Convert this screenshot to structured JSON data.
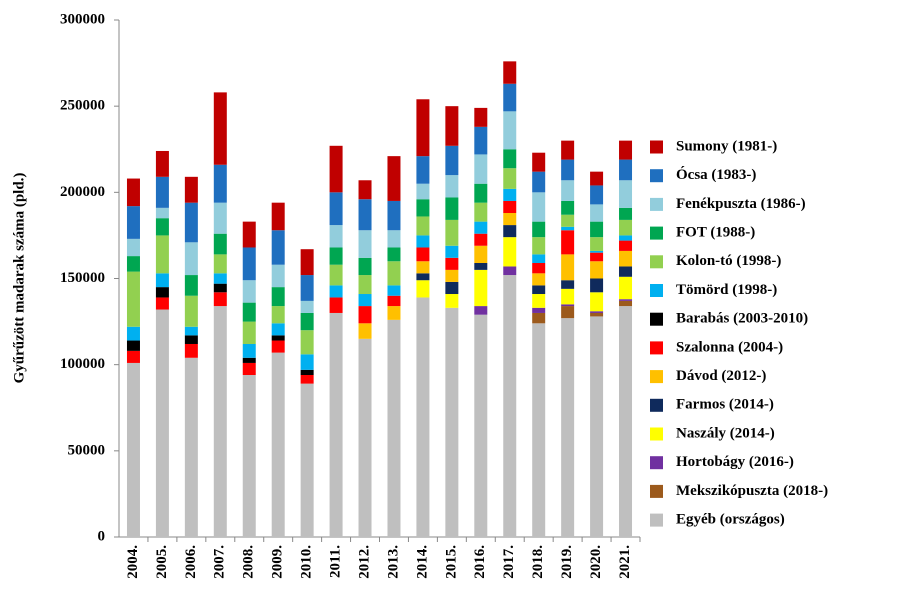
{
  "chart_data": {
    "type": "stacked_bar",
    "y_label": "Gyűrűzött madarak száma (pld.)",
    "categories": [
      "2004.",
      "2005.",
      "2006.",
      "2007.",
      "2008.",
      "2009.",
      "2010.",
      "2011.",
      "2012.",
      "2013.",
      "2014.",
      "2015.",
      "2016.",
      "2017.",
      "2018.",
      "2019.",
      "2020.",
      "2021."
    ],
    "ylim": [
      0,
      300000
    ],
    "yticks": [
      0,
      50000,
      100000,
      150000,
      200000,
      250000,
      300000
    ],
    "grid": false,
    "legend": "right",
    "series": [
      {
        "name": "Egyéb (országos)",
        "color": "#bfbfbf",
        "values": [
          101000,
          132000,
          104000,
          134000,
          94000,
          107000,
          89000,
          130000,
          115000,
          126000,
          139000,
          133000,
          129000,
          152000,
          124000,
          127000,
          128000,
          134000
        ]
      },
      {
        "name": "Mekszikópuszta (2018-)",
        "color": "#9c5a1c",
        "values": [
          null,
          null,
          null,
          null,
          null,
          null,
          null,
          null,
          null,
          null,
          null,
          null,
          null,
          null,
          6000,
          7000,
          2000,
          3000
        ]
      },
      {
        "name": "Hortobágy (2016-)",
        "color": "#7030a0",
        "values": [
          null,
          null,
          null,
          null,
          null,
          null,
          null,
          null,
          null,
          null,
          null,
          null,
          5000,
          5000,
          3000,
          1000,
          1000,
          1000
        ]
      },
      {
        "name": "Naszály (2014-)",
        "color": "#ffff00",
        "values": [
          null,
          null,
          null,
          null,
          null,
          null,
          null,
          null,
          null,
          null,
          10000,
          8000,
          21000,
          17000,
          8000,
          9000,
          11000,
          13000
        ]
      },
      {
        "name": "Farmos (2014-)",
        "color": "#0f2a5c",
        "values": [
          null,
          null,
          null,
          null,
          null,
          null,
          null,
          null,
          null,
          null,
          4000,
          7000,
          4000,
          7000,
          5000,
          5000,
          8000,
          6000
        ]
      },
      {
        "name": "Dávod (2012-)",
        "color": "#ffc000",
        "values": [
          null,
          null,
          null,
          null,
          null,
          null,
          null,
          null,
          9000,
          8000,
          7000,
          7000,
          10000,
          7000,
          7000,
          15000,
          10000,
          9000
        ]
      },
      {
        "name": "Szalonna (2004-)",
        "color": "#ff0000",
        "values": [
          7000,
          7000,
          8000,
          8000,
          7000,
          7000,
          5000,
          9000,
          10000,
          6000,
          8000,
          7000,
          7000,
          7000,
          6000,
          14000,
          5000,
          6000
        ]
      },
      {
        "name": "Barabás (2003-2010)",
        "color": "#000000",
        "values": [
          6000,
          6000,
          5000,
          5000,
          3000,
          3000,
          3000,
          null,
          null,
          null,
          null,
          null,
          null,
          null,
          null,
          null,
          null,
          null
        ]
      },
      {
        "name": "Tömörd (1998-)",
        "color": "#00b0f0",
        "values": [
          8000,
          8000,
          5000,
          6000,
          8000,
          7000,
          9000,
          7000,
          7000,
          6000,
          7000,
          7000,
          7000,
          7000,
          5000,
          2000,
          1000,
          3000
        ]
      },
      {
        "name": "Kolon-tó (1998-)",
        "color": "#92d050",
        "values": [
          32000,
          22000,
          18000,
          11000,
          13000,
          10000,
          14000,
          12000,
          11000,
          14000,
          11000,
          15000,
          11000,
          12000,
          10000,
          7000,
          8000,
          9000
        ]
      },
      {
        "name": "FOT (1988-)",
        "color": "#00a651",
        "values": [
          9000,
          10000,
          12000,
          12000,
          11000,
          11000,
          10000,
          10000,
          10000,
          8000,
          10000,
          13000,
          11000,
          11000,
          9000,
          8000,
          9000,
          7000
        ]
      },
      {
        "name": "Fenékpuszta (1986-)",
        "color": "#92cddc",
        "values": [
          10000,
          6000,
          19000,
          18000,
          13000,
          13000,
          7000,
          13000,
          16000,
          10000,
          9000,
          13000,
          17000,
          22000,
          17000,
          12000,
          10000,
          16000
        ]
      },
      {
        "name": "Ócsa (1983-)",
        "color": "#1f6fbf",
        "values": [
          19000,
          18000,
          23000,
          22000,
          19000,
          20000,
          15000,
          19000,
          18000,
          17000,
          16000,
          17000,
          16000,
          16000,
          12000,
          12000,
          11000,
          12000
        ]
      },
      {
        "name": "Sumony (1981-)",
        "color": "#c00000",
        "values": [
          16000,
          15000,
          15000,
          42000,
          15000,
          16000,
          15000,
          27000,
          11000,
          26000,
          33000,
          23000,
          11000,
          13000,
          11000,
          11000,
          8000,
          11000
        ]
      }
    ]
  }
}
